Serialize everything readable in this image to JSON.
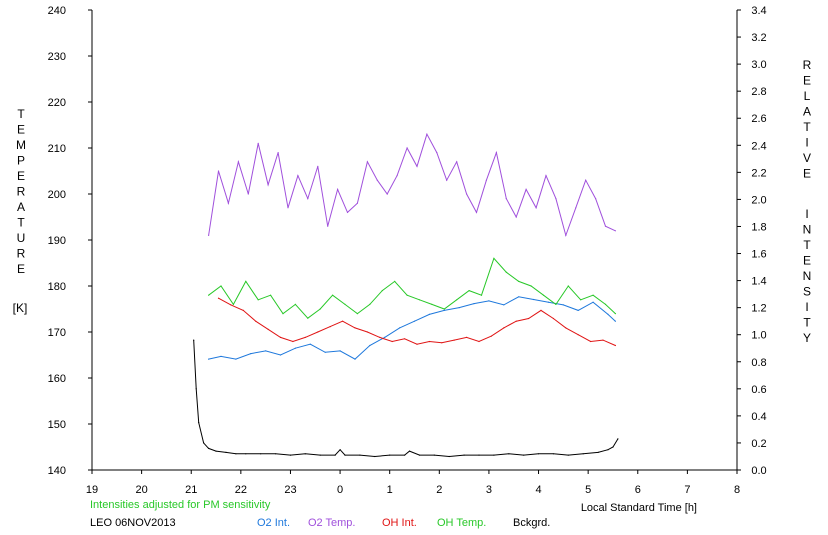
{
  "chart_data": {
    "type": "line",
    "left_axis": {
      "label_letters": [
        "T",
        "E",
        "M",
        "P",
        "E",
        "R",
        "A",
        "T",
        "U",
        "R",
        "E"
      ],
      "unit": "[K]",
      "range": [
        140,
        240
      ],
      "ticks": [
        "240",
        "230",
        "220",
        "210",
        "200",
        "190",
        "180",
        "170",
        "160",
        "150",
        "140"
      ]
    },
    "right_axis": {
      "label_word1": [
        "R",
        "E",
        "L",
        "A",
        "T",
        "I",
        "V",
        "E"
      ],
      "label_word2": [
        "I",
        "N",
        "T",
        "E",
        "N",
        "S",
        "I",
        "T",
        "Y"
      ],
      "range": [
        0.0,
        3.4
      ],
      "ticks": [
        "3.4",
        "3.2",
        "3.0",
        "2.8",
        "2.6",
        "2.4",
        "2.2",
        "2.0",
        "1.8",
        "1.6",
        "1.4",
        "1.2",
        "1.0",
        "0.8",
        "0.6",
        "0.4",
        "0.2",
        "0.0"
      ]
    },
    "x_axis": {
      "label": "Local Standard Time [h]",
      "range": [
        19,
        32
      ],
      "ticks": [
        "19",
        "20",
        "21",
        "22",
        "23",
        "0",
        "1",
        "2",
        "3",
        "4",
        "5",
        "6",
        "7",
        "8"
      ]
    },
    "note": "Intensities adjusted for PM sensitivity",
    "station_label": "LEO 06NOV2013",
    "series": [
      {
        "name": "O2 Int.",
        "color": "#1e78dc",
        "axis": "right",
        "x": [
          21.35,
          21.6,
          21.9,
          22.2,
          22.5,
          22.8,
          23.1,
          23.4,
          23.7,
          24.0,
          24.3,
          24.6,
          24.9,
          25.2,
          25.5,
          25.8,
          26.1,
          26.4,
          26.7,
          27.0,
          27.3,
          27.6,
          27.9,
          28.2,
          28.5,
          28.8,
          29.1,
          29.4,
          29.55
        ],
        "values": [
          0.82,
          0.84,
          0.82,
          0.86,
          0.88,
          0.85,
          0.9,
          0.93,
          0.87,
          0.88,
          0.82,
          0.92,
          0.98,
          1.05,
          1.1,
          1.15,
          1.18,
          1.2,
          1.23,
          1.25,
          1.22,
          1.28,
          1.26,
          1.24,
          1.22,
          1.18,
          1.24,
          1.15,
          1.1
        ]
      },
      {
        "name": "O2 Temp.",
        "color": "#a050dc",
        "axis": "left",
        "x": [
          21.35,
          21.55,
          21.75,
          21.95,
          22.15,
          22.35,
          22.55,
          22.75,
          22.95,
          23.15,
          23.35,
          23.55,
          23.75,
          23.95,
          24.15,
          24.35,
          24.55,
          24.75,
          24.95,
          25.15,
          25.35,
          25.55,
          25.75,
          25.95,
          26.15,
          26.35,
          26.55,
          26.75,
          26.95,
          27.15,
          27.35,
          27.55,
          27.75,
          27.95,
          28.15,
          28.35,
          28.55,
          28.75,
          28.95,
          29.15,
          29.35,
          29.55
        ],
        "values": [
          191,
          205,
          198,
          207,
          200,
          211,
          202,
          209,
          197,
          204,
          199,
          206,
          193,
          201,
          196,
          198,
          207,
          203,
          200,
          204,
          210,
          206,
          213,
          209,
          203,
          207,
          200,
          196,
          203,
          209,
          199,
          195,
          201,
          197,
          204,
          199,
          191,
          197,
          203,
          199,
          193,
          192
        ]
      },
      {
        "name": "OH Int.",
        "color": "#e01414",
        "axis": "right",
        "x": [
          21.55,
          21.8,
          22.05,
          22.3,
          22.55,
          22.8,
          23.05,
          23.3,
          23.55,
          23.8,
          24.05,
          24.3,
          24.55,
          24.8,
          25.05,
          25.3,
          25.55,
          25.8,
          26.05,
          26.3,
          26.55,
          26.8,
          27.05,
          27.3,
          27.55,
          27.8,
          28.05,
          28.3,
          28.55,
          28.8,
          29.05,
          29.3,
          29.55
        ],
        "values": [
          1.27,
          1.22,
          1.18,
          1.1,
          1.04,
          0.98,
          0.95,
          0.98,
          1.02,
          1.06,
          1.1,
          1.05,
          1.02,
          0.98,
          0.95,
          0.97,
          0.93,
          0.95,
          0.94,
          0.96,
          0.98,
          0.95,
          0.99,
          1.05,
          1.1,
          1.12,
          1.18,
          1.12,
          1.05,
          1.0,
          0.95,
          0.96,
          0.92
        ]
      },
      {
        "name": "OH Temp.",
        "color": "#28c828",
        "axis": "left",
        "x": [
          21.35,
          21.6,
          21.85,
          22.1,
          22.35,
          22.6,
          22.85,
          23.1,
          23.35,
          23.6,
          23.85,
          24.1,
          24.35,
          24.6,
          24.85,
          25.1,
          25.35,
          25.6,
          25.85,
          26.1,
          26.35,
          26.6,
          26.85,
          27.1,
          27.35,
          27.6,
          27.85,
          28.1,
          28.35,
          28.6,
          28.85,
          29.1,
          29.35,
          29.55
        ],
        "values": [
          178,
          180,
          176,
          181,
          177,
          178,
          174,
          176,
          173,
          175,
          178,
          176,
          174,
          176,
          179,
          181,
          178,
          177,
          176,
          175,
          177,
          179,
          178,
          186,
          183,
          181,
          180,
          178,
          176,
          180,
          177,
          178,
          176,
          174
        ]
      },
      {
        "name": "Bckgrd.",
        "color": "#000000",
        "axis": "right",
        "x": [
          21.05,
          21.1,
          21.15,
          21.25,
          21.35,
          21.5,
          21.7,
          21.9,
          22.1,
          22.4,
          22.7,
          23.0,
          23.3,
          23.6,
          23.9,
          24.0,
          24.1,
          24.4,
          24.7,
          25.0,
          25.3,
          25.4,
          25.6,
          25.9,
          26.2,
          26.5,
          26.8,
          27.1,
          27.4,
          27.7,
          28.0,
          28.3,
          28.6,
          28.9,
          29.2,
          29.4,
          29.5,
          29.6
        ],
        "values": [
          0.96,
          0.6,
          0.35,
          0.2,
          0.16,
          0.14,
          0.13,
          0.12,
          0.12,
          0.12,
          0.12,
          0.11,
          0.12,
          0.11,
          0.11,
          0.15,
          0.11,
          0.11,
          0.1,
          0.11,
          0.11,
          0.14,
          0.11,
          0.11,
          0.1,
          0.11,
          0.11,
          0.11,
          0.12,
          0.11,
          0.12,
          0.12,
          0.11,
          0.12,
          0.13,
          0.15,
          0.17,
          0.23
        ]
      }
    ],
    "grid": false,
    "legend_placement": "bottom"
  }
}
